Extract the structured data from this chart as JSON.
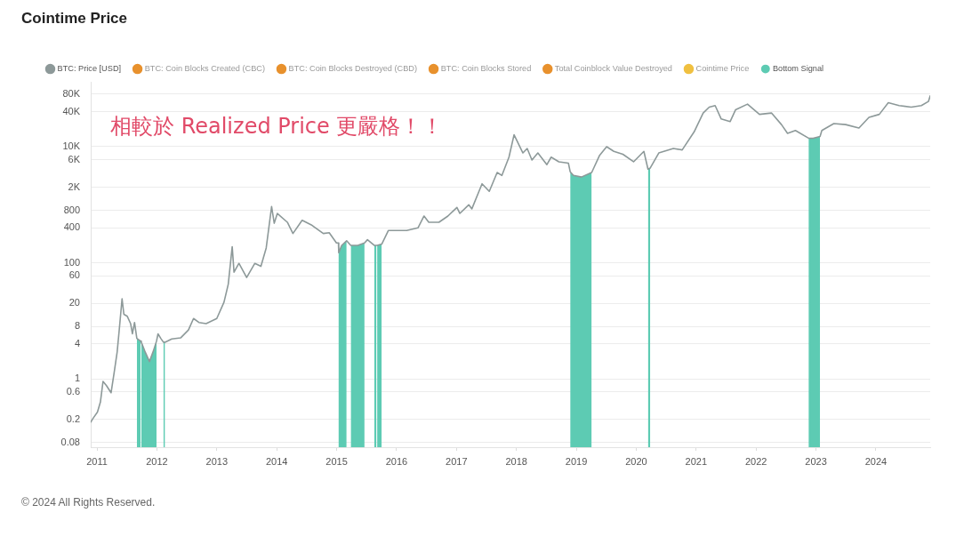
{
  "chart_data": {
    "type": "line",
    "title": "Cointime Price",
    "annotations": [
      "相較於 Realized Price 更嚴格！！",
      "© 2024 All Rights Reserved."
    ],
    "xlim": [
      "2010-11-24",
      "2024-11-28"
    ],
    "xticks": [
      "2011",
      "2012",
      "2013",
      "2014",
      "2015",
      "2016",
      "2017",
      "2018",
      "2019",
      "2020",
      "2021",
      "2022",
      "2023",
      "2024"
    ],
    "ylim": [
      0.067,
      130000
    ],
    "yticks": [
      0.08,
      0.2,
      0.6,
      1,
      4,
      8,
      20,
      60,
      100,
      400,
      800,
      {
        "value": 2000,
        "label": "2K"
      },
      {
        "value": 6000,
        "label": "6K"
      },
      {
        "value": 10000,
        "label": "10K"
      },
      {
        "value": 40000,
        "label": "40K"
      },
      {
        "value": 80000,
        "label": "80K"
      }
    ],
    "log": "y",
    "grid": "y",
    "legend": "top left",
    "series": [
      {
        "name": "BTC: Price [USD]",
        "color": "#8d9999",
        "x": [
          "2010-11-24",
          "2010-12-08",
          "2011-01-04",
          "2011-01-22",
          "2011-02-07",
          "2011-02-28",
          "2011-03-28",
          "2011-04-16",
          "2011-05-04",
          "2011-05-16",
          "2011-06-03",
          "2011-06-14",
          "2011-07-05",
          "2011-07-25",
          "2011-08-05",
          "2011-08-18",
          "2011-09-01",
          "2011-09-24",
          "2011-09-28",
          "2011-10-20",
          "2011-11-17",
          "2011-12-10",
          "2011-12-30",
          "2012-01-08",
          "2012-01-25",
          "2012-02-10",
          "2012-02-20",
          "2012-04-01",
          "2012-05-25",
          "2012-07-12",
          "2012-08-12",
          "2012-09-14",
          "2012-10-28",
          "2013-01-01",
          "2013-02-14",
          "2013-03-12",
          "2013-04-05",
          "2013-04-16",
          "2013-05-16",
          "2013-07-02",
          "2013-08-21",
          "2013-09-27",
          "2013-10-29",
          "2013-12-01",
          "2013-12-17",
          "2014-01-05",
          "2014-03-07",
          "2014-04-10",
          "2014-06-05",
          "2014-07-31",
          "2014-10-12",
          "2014-11-17",
          "2014-12-31",
          "2015-01-12",
          "2015-01-14",
          "2015-02-01",
          "2015-03-03",
          "2015-03-28",
          "2015-05-10",
          "2015-06-20",
          "2015-07-08",
          "2015-08-18",
          "2015-09-01",
          "2015-09-05",
          "2015-10-03",
          "2015-11-12",
          "2016-01-08",
          "2016-03-03",
          "2016-05-11",
          "2016-06-17",
          "2016-07-16",
          "2016-09-16",
          "2016-11-10",
          "2017-01-04",
          "2017-01-22",
          "2017-03-17",
          "2017-04-05",
          "2017-06-06",
          "2017-07-20",
          "2017-09-06",
          "2017-10-05",
          "2017-11-17",
          "2017-12-18",
          "2018-02-10",
          "2018-03-08",
          "2018-04-06",
          "2018-05-12",
          "2018-07-06",
          "2018-08-01",
          "2018-09-17",
          "2018-11-14",
          "2018-11-25",
          "2018-12-15",
          "2019-02-01",
          "2019-04-05",
          "2019-05-22",
          "2019-07-05",
          "2019-08-18",
          "2019-10-12",
          "2019-12-16",
          "2020-02-17",
          "2020-03-13",
          "2020-03-27",
          "2020-05-18",
          "2020-08-15",
          "2020-10-08",
          "2020-12-20",
          "2021-02-13",
          "2021-03-22",
          "2021-04-27",
          "2021-06-03",
          "2021-07-27",
          "2021-08-29",
          "2021-11-10",
          "2022-01-22",
          "2022-04-05",
          "2022-06-05",
          "2022-07-12",
          "2022-08-29",
          "2022-11-17",
          "2022-12-15",
          "2023-01-26",
          "2023-02-06",
          "2023-04-20",
          "2023-07-01",
          "2023-09-20",
          "2023-11-20",
          "2024-01-22",
          "2024-03-17",
          "2024-05-22",
          "2024-08-04",
          "2024-10-05",
          "2024-11-17",
          "2024-11-28"
        ],
        "values": [
          0.18,
          0.21,
          0.27,
          0.4,
          0.91,
          0.77,
          0.58,
          1.3,
          2.9,
          6.6,
          24,
          13,
          12,
          9,
          6,
          9.4,
          5,
          4.5,
          4.3,
          3,
          2,
          3,
          4.5,
          6,
          5,
          4.3,
          4.3,
          4.9,
          5.1,
          7,
          11,
          9.4,
          9,
          11,
          21,
          43,
          190,
          69,
          98,
          56,
          98,
          87,
          180,
          930,
          480,
          710,
          500,
          320,
          540,
          450,
          320,
          330,
          220,
          220,
          150,
          200,
          240,
          200,
          200,
          220,
          250,
          200,
          200,
          200,
          210,
          360,
          360,
          360,
          400,
          640,
          500,
          500,
          640,
          900,
          710,
          1000,
          850,
          2300,
          1700,
          3600,
          3200,
          6600,
          16000,
          7800,
          9300,
          5900,
          7800,
          4900,
          6600,
          5500,
          5200,
          3700,
          3200,
          3000,
          3600,
          7000,
          10000,
          8300,
          7400,
          5500,
          8300,
          4100,
          4300,
          7800,
          9300,
          8800,
          18000,
          38000,
          48000,
          51000,
          30000,
          27000,
          43000,
          54000,
          36000,
          38000,
          24000,
          17000,
          19000,
          14000,
          14000,
          15000,
          19000,
          25000,
          24000,
          21000,
          32000,
          36000,
          57000,
          51000,
          48000,
          51000,
          60000,
          75000
        ]
      },
      {
        "name": "BTC: Coin Blocks Created (CBC)",
        "color": "#e8912d"
      },
      {
        "name": "BTC: Coin Blocks Destroyed (CBD)",
        "color": "#e8912d"
      },
      {
        "name": "BTC: Coin Blocks Stored",
        "color": "#e8912d"
      },
      {
        "name": "Total Coinblock Value Destroyed",
        "color": "#e8912d"
      },
      {
        "name": "Cointime Price",
        "color": "#f0c040"
      },
      {
        "name": "Bottom Signal",
        "type": "area",
        "color": "#5dcbb3",
        "x": [
          "2011-09-01",
          "2011-09-24",
          "2011-09-26",
          "2011-09-28",
          "2011-10-20",
          "2011-11-17",
          "2011-12-10",
          "2011-12-30",
          "2012-01-15",
          "2012-02-10",
          "2012-02-20",
          "2013-06-01",
          "2015-01-12",
          "2015-01-14",
          "2015-02-01",
          "2015-03-03",
          "2015-03-15",
          "2015-03-28",
          "2015-05-10",
          "2015-06-20",
          "2015-07-20",
          "2015-08-18",
          "2015-09-01",
          "2015-09-03",
          "2015-09-05",
          "2015-10-03",
          "2017-01-01",
          "2018-11-25",
          "2018-12-15",
          "2019-02-01",
          "2019-04-05",
          "2019-10-01",
          "2020-03-13",
          "2020-03-27",
          "2021-06-01",
          "2022-11-17",
          "2022-12-15",
          "2023-01-26"
        ],
        "values": [
          5,
          4.5,
          null,
          4.3,
          3,
          2,
          3,
          4.5,
          null,
          4.3,
          4.3,
          null,
          220,
          150,
          200,
          240,
          null,
          200,
          200,
          220,
          null,
          200,
          200,
          null,
          200,
          210,
          null,
          3700,
          3200,
          3000,
          3600,
          null,
          4100,
          4300,
          null,
          14000,
          14000,
          15000
        ]
      }
    ]
  }
}
